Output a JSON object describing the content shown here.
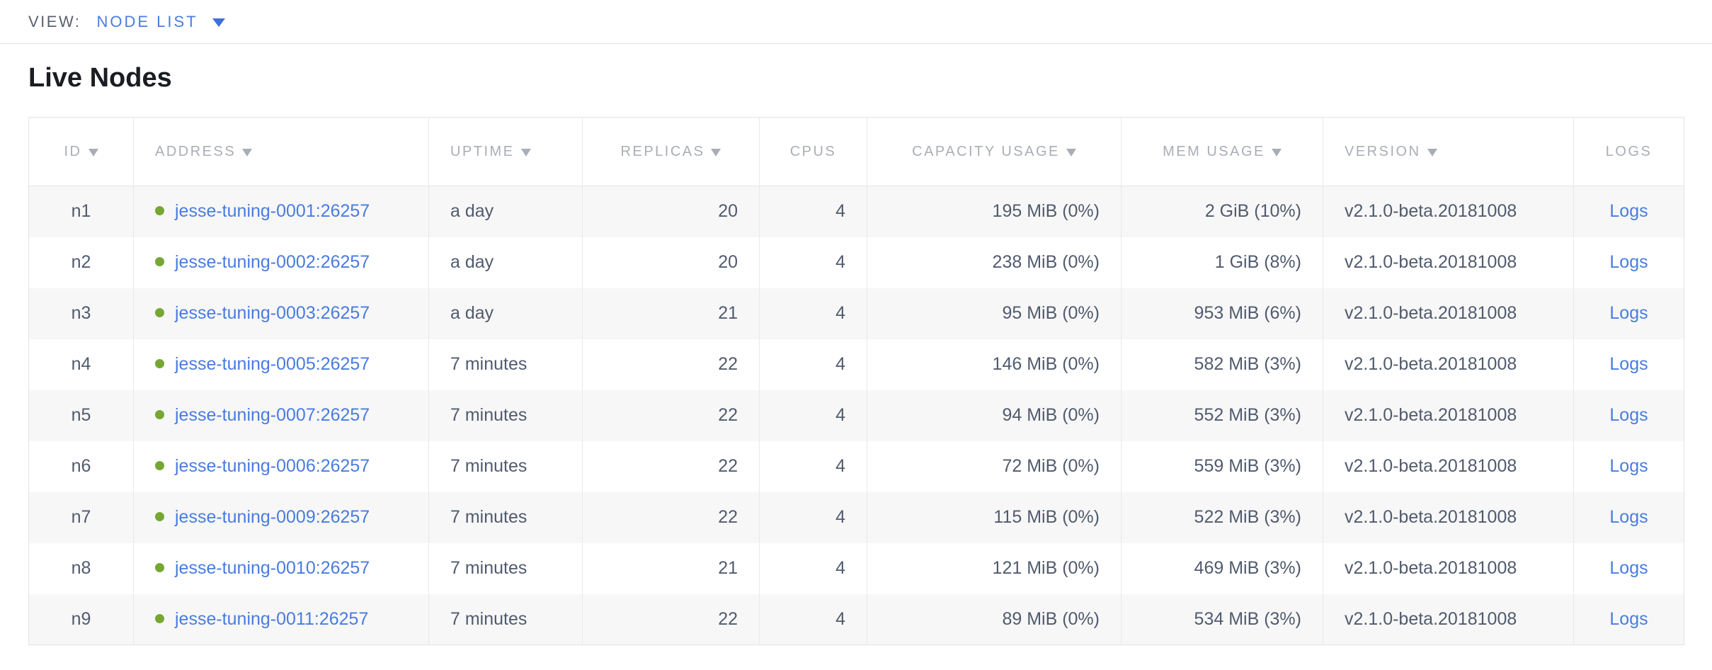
{
  "view_bar": {
    "label": "VIEW:",
    "selected": "NODE LIST"
  },
  "page": {
    "title": "Live Nodes"
  },
  "table": {
    "columns": [
      {
        "label": "ID",
        "field": "id",
        "sorted": true
      },
      {
        "label": "ADDRESS",
        "field": "address",
        "sorted": true
      },
      {
        "label": "UPTIME",
        "field": "uptime",
        "sorted": true
      },
      {
        "label": "REPLICAS",
        "field": "replicas",
        "sorted": true
      },
      {
        "label": "CPUS",
        "field": "cpus",
        "sorted": false
      },
      {
        "label": "CAPACITY USAGE",
        "field": "capacity",
        "sorted": true
      },
      {
        "label": "MEM USAGE",
        "field": "mem",
        "sorted": true
      },
      {
        "label": "VERSION",
        "field": "version",
        "sorted": true
      },
      {
        "label": "LOGS",
        "field": "logs",
        "sorted": false
      }
    ],
    "rows": [
      {
        "id": "n1",
        "address": "jesse-tuning-0001:26257",
        "uptime": "a day",
        "replicas": "20",
        "cpus": "4",
        "capacity": "195 MiB (0%)",
        "mem": "2 GiB (10%)",
        "version": "v2.1.0-beta.20181008",
        "logs": "Logs"
      },
      {
        "id": "n2",
        "address": "jesse-tuning-0002:26257",
        "uptime": "a day",
        "replicas": "20",
        "cpus": "4",
        "capacity": "238 MiB (0%)",
        "mem": "1 GiB (8%)",
        "version": "v2.1.0-beta.20181008",
        "logs": "Logs"
      },
      {
        "id": "n3",
        "address": "jesse-tuning-0003:26257",
        "uptime": "a day",
        "replicas": "21",
        "cpus": "4",
        "capacity": "95 MiB (0%)",
        "mem": "953 MiB (6%)",
        "version": "v2.1.0-beta.20181008",
        "logs": "Logs"
      },
      {
        "id": "n4",
        "address": "jesse-tuning-0005:26257",
        "uptime": "7 minutes",
        "replicas": "22",
        "cpus": "4",
        "capacity": "146 MiB (0%)",
        "mem": "582 MiB (3%)",
        "version": "v2.1.0-beta.20181008",
        "logs": "Logs"
      },
      {
        "id": "n5",
        "address": "jesse-tuning-0007:26257",
        "uptime": "7 minutes",
        "replicas": "22",
        "cpus": "4",
        "capacity": "94 MiB (0%)",
        "mem": "552 MiB (3%)",
        "version": "v2.1.0-beta.20181008",
        "logs": "Logs"
      },
      {
        "id": "n6",
        "address": "jesse-tuning-0006:26257",
        "uptime": "7 minutes",
        "replicas": "22",
        "cpus": "4",
        "capacity": "72 MiB (0%)",
        "mem": "559 MiB (3%)",
        "version": "v2.1.0-beta.20181008",
        "logs": "Logs"
      },
      {
        "id": "n7",
        "address": "jesse-tuning-0009:26257",
        "uptime": "7 minutes",
        "replicas": "22",
        "cpus": "4",
        "capacity": "115 MiB (0%)",
        "mem": "522 MiB (3%)",
        "version": "v2.1.0-beta.20181008",
        "logs": "Logs"
      },
      {
        "id": "n8",
        "address": "jesse-tuning-0010:26257",
        "uptime": "7 minutes",
        "replicas": "21",
        "cpus": "4",
        "capacity": "121 MiB (0%)",
        "mem": "469 MiB (3%)",
        "version": "v2.1.0-beta.20181008",
        "logs": "Logs"
      },
      {
        "id": "n9",
        "address": "jesse-tuning-0011:26257",
        "uptime": "7 minutes",
        "replicas": "22",
        "cpus": "4",
        "capacity": "89 MiB (0%)",
        "mem": "534 MiB (3%)",
        "version": "v2.1.0-beta.20181008",
        "logs": "Logs"
      }
    ]
  },
  "colors": {
    "accent_blue": "#497ce0",
    "node_status_green": "#76a733",
    "header_gray": "#a9aeb5",
    "cell_text": "#515b6e",
    "row_stripe": "#f7f7f7"
  }
}
